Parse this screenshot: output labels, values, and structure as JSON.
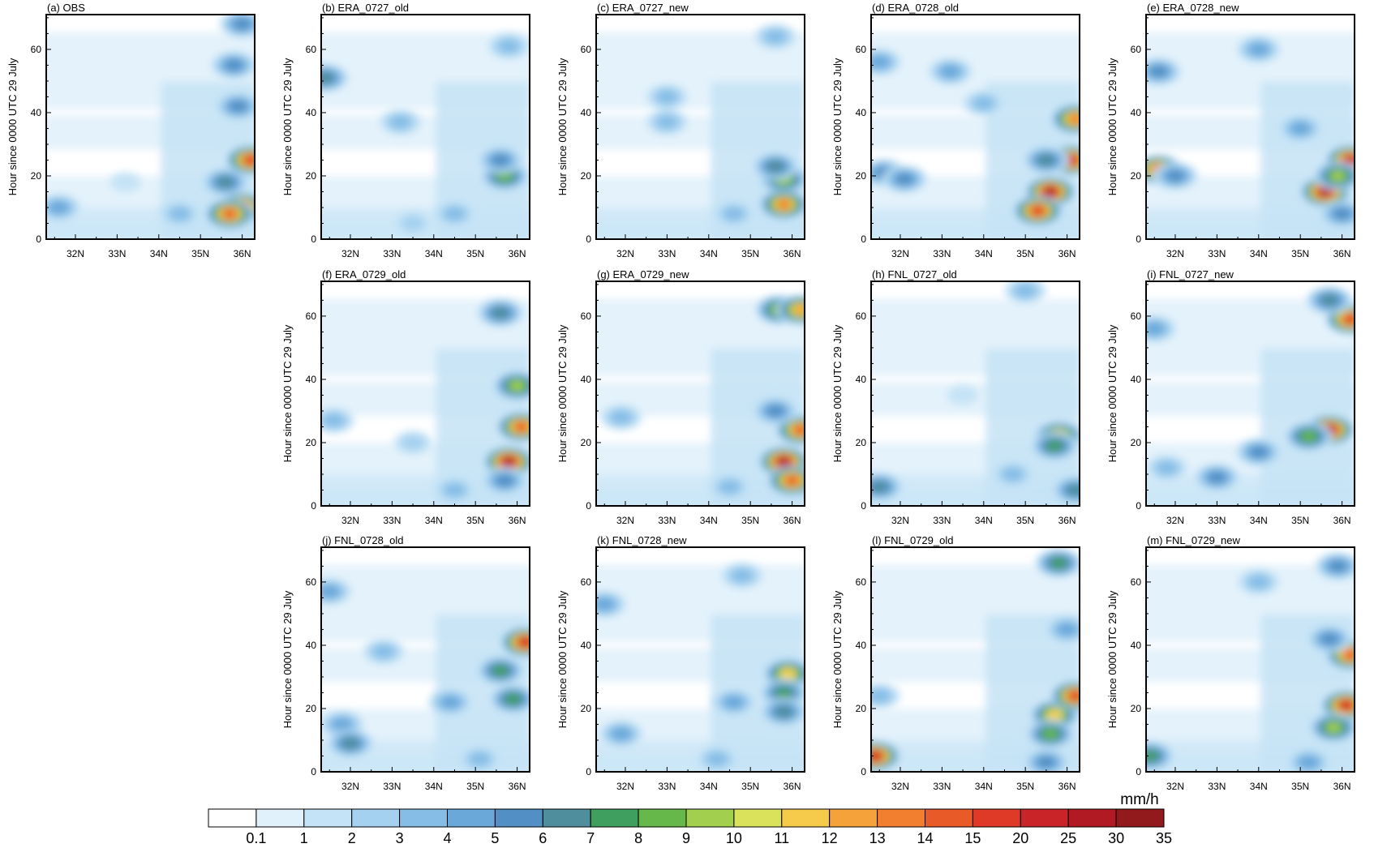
{
  "chart_data": {
    "type": "heatmap",
    "description_fields": false,
    "ylabel": "Hour since 0000 UTC 29 July",
    "x_ticks": [
      "32N",
      "33N",
      "34N",
      "35N",
      "36N"
    ],
    "x_tick_values": [
      32,
      33,
      34,
      35,
      36
    ],
    "xlim": [
      31.3,
      36.3
    ],
    "y_ticks": [
      "0",
      "20",
      "40",
      "60"
    ],
    "y_tick_values": [
      0,
      20,
      40,
      60
    ],
    "ylim": [
      0,
      71
    ],
    "colorbar": {
      "unit": "mm/h",
      "levels": [
        "0.1",
        "1",
        "2",
        "3",
        "4",
        "5",
        "6",
        "7",
        "8",
        "9",
        "10",
        "11",
        "12",
        "13",
        "14",
        "15",
        "20",
        "25",
        "30",
        "35"
      ],
      "colors": [
        "#ffffff",
        "#e1f1fb",
        "#c5e3f6",
        "#a5d1f0",
        "#86bde6",
        "#6aa8da",
        "#528fc5",
        "#4f8e9c",
        "#3f9f5f",
        "#66b84a",
        "#a3cf4e",
        "#d9e25a",
        "#f6cb4c",
        "#f6a23a",
        "#f27f2f",
        "#e95a29",
        "#de3a27",
        "#c92427",
        "#b11a22",
        "#921a1c"
      ]
    },
    "panels": [
      {
        "label": "(a) OBS",
        "cells": [
          {
            "lat": 36.0,
            "hour": 10,
            "value": 22
          },
          {
            "lat": 35.7,
            "hour": 8,
            "value": 14
          },
          {
            "lat": 36.2,
            "hour": 25,
            "value": 16
          },
          {
            "lat": 35.6,
            "hour": 18,
            "value": 6
          },
          {
            "lat": 35.9,
            "hour": 42,
            "value": 5
          },
          {
            "lat": 35.8,
            "hour": 55,
            "value": 5
          },
          {
            "lat": 36.0,
            "hour": 68,
            "value": 5
          },
          {
            "lat": 31.6,
            "hour": 10,
            "value": 4
          },
          {
            "lat": 34.5,
            "hour": 8,
            "value": 3
          },
          {
            "lat": 33.2,
            "hour": 18,
            "value": 1.5
          }
        ]
      },
      {
        "label": "(b) ERA_0727_old",
        "cells": [
          {
            "lat": 35.7,
            "hour": 20,
            "value": 8
          },
          {
            "lat": 35.6,
            "hour": 25,
            "value": 5
          },
          {
            "lat": 33.2,
            "hour": 37,
            "value": 3
          },
          {
            "lat": 35.8,
            "hour": 61,
            "value": 3
          },
          {
            "lat": 31.4,
            "hour": 51,
            "value": 6
          },
          {
            "lat": 34.5,
            "hour": 8,
            "value": 3
          },
          {
            "lat": 33.5,
            "hour": 5,
            "value": 2
          }
        ]
      },
      {
        "label": "(c) ERA_0727_new",
        "cells": [
          {
            "lat": 35.8,
            "hour": 19,
            "value": 9
          },
          {
            "lat": 35.8,
            "hour": 11,
            "value": 13
          },
          {
            "lat": 35.6,
            "hour": 23,
            "value": 6
          },
          {
            "lat": 33.0,
            "hour": 37,
            "value": 3
          },
          {
            "lat": 33.0,
            "hour": 45,
            "value": 3
          },
          {
            "lat": 35.6,
            "hour": 64,
            "value": 3
          },
          {
            "lat": 34.6,
            "hour": 8,
            "value": 3
          }
        ]
      },
      {
        "label": "(d) ERA_0728_old",
        "cells": [
          {
            "lat": 35.6,
            "hour": 15,
            "value": 25
          },
          {
            "lat": 35.3,
            "hour": 9,
            "value": 18
          },
          {
            "lat": 36.1,
            "hour": 25,
            "value": 20
          },
          {
            "lat": 36.2,
            "hour": 38,
            "value": 13
          },
          {
            "lat": 35.5,
            "hour": 25,
            "value": 6
          },
          {
            "lat": 31.6,
            "hour": 21,
            "value": 5
          },
          {
            "lat": 32.1,
            "hour": 19,
            "value": 5
          },
          {
            "lat": 31.5,
            "hour": 56,
            "value": 4
          },
          {
            "lat": 33.2,
            "hour": 53,
            "value": 4
          },
          {
            "lat": 34.0,
            "hour": 43,
            "value": 3
          }
        ]
      },
      {
        "label": "(e) ERA_0728_new",
        "cells": [
          {
            "lat": 35.6,
            "hour": 15,
            "value": 25
          },
          {
            "lat": 36.2,
            "hour": 25,
            "value": 20
          },
          {
            "lat": 35.9,
            "hour": 20,
            "value": 9
          },
          {
            "lat": 31.6,
            "hour": 22,
            "value": 14
          },
          {
            "lat": 32.0,
            "hour": 20,
            "value": 5
          },
          {
            "lat": 31.6,
            "hour": 53,
            "value": 5
          },
          {
            "lat": 34.0,
            "hour": 60,
            "value": 4
          },
          {
            "lat": 35.0,
            "hour": 35,
            "value": 4
          },
          {
            "lat": 36.0,
            "hour": 8,
            "value": 5
          }
        ]
      },
      {
        "label": "(f) ERA_0729_old",
        "cells": [
          {
            "lat": 35.8,
            "hour": 14,
            "value": 25
          },
          {
            "lat": 36.1,
            "hour": 25,
            "value": 14
          },
          {
            "lat": 36.0,
            "hour": 38,
            "value": 9
          },
          {
            "lat": 35.6,
            "hour": 61,
            "value": 6
          },
          {
            "lat": 35.7,
            "hour": 8,
            "value": 5
          },
          {
            "lat": 31.6,
            "hour": 27,
            "value": 3
          },
          {
            "lat": 33.5,
            "hour": 20,
            "value": 2
          },
          {
            "lat": 34.5,
            "hour": 5,
            "value": 3
          }
        ]
      },
      {
        "label": "(g) ERA_0729_new",
        "cells": [
          {
            "lat": 35.8,
            "hour": 14,
            "value": 25
          },
          {
            "lat": 36.2,
            "hour": 24,
            "value": 14
          },
          {
            "lat": 36.0,
            "hour": 8,
            "value": 14
          },
          {
            "lat": 35.7,
            "hour": 62,
            "value": 9
          },
          {
            "lat": 36.2,
            "hour": 62,
            "value": 12
          },
          {
            "lat": 35.6,
            "hour": 30,
            "value": 5
          },
          {
            "lat": 31.9,
            "hour": 28,
            "value": 3
          },
          {
            "lat": 34.5,
            "hour": 6,
            "value": 3
          }
        ]
      },
      {
        "label": "(h) FNL_0727_old",
        "cells": [
          {
            "lat": 35.8,
            "hour": 22,
            "value": 12
          },
          {
            "lat": 35.7,
            "hour": 19,
            "value": 7
          },
          {
            "lat": 31.5,
            "hour": 6,
            "value": 6
          },
          {
            "lat": 36.2,
            "hour": 5,
            "value": 6
          },
          {
            "lat": 34.7,
            "hour": 10,
            "value": 3
          },
          {
            "lat": 35.0,
            "hour": 68,
            "value": 3
          },
          {
            "lat": 33.5,
            "hour": 35,
            "value": 1.5
          }
        ]
      },
      {
        "label": "(i) FNL_0727_new",
        "cells": [
          {
            "lat": 35.7,
            "hour": 24,
            "value": 25
          },
          {
            "lat": 35.2,
            "hour": 22,
            "value": 8
          },
          {
            "lat": 36.2,
            "hour": 59,
            "value": 15
          },
          {
            "lat": 35.7,
            "hour": 65,
            "value": 6
          },
          {
            "lat": 34.0,
            "hour": 17,
            "value": 5
          },
          {
            "lat": 33.0,
            "hour": 9,
            "value": 5
          },
          {
            "lat": 31.5,
            "hour": 56,
            "value": 4
          },
          {
            "lat": 31.8,
            "hour": 12,
            "value": 3
          }
        ]
      },
      {
        "label": "(j) FNL_0728_old",
        "cells": [
          {
            "lat": 36.2,
            "hour": 41,
            "value": 20
          },
          {
            "lat": 35.6,
            "hour": 32,
            "value": 7
          },
          {
            "lat": 35.9,
            "hour": 23,
            "value": 7
          },
          {
            "lat": 34.4,
            "hour": 22,
            "value": 4
          },
          {
            "lat": 31.8,
            "hour": 15,
            "value": 4
          },
          {
            "lat": 32.0,
            "hour": 9,
            "value": 6
          },
          {
            "lat": 31.5,
            "hour": 57,
            "value": 4
          },
          {
            "lat": 32.8,
            "hour": 38,
            "value": 3
          },
          {
            "lat": 35.1,
            "hour": 4,
            "value": 3
          }
        ]
      },
      {
        "label": "(k) FNL_0728_new",
        "cells": [
          {
            "lat": 35.9,
            "hour": 31,
            "value": 11
          },
          {
            "lat": 35.8,
            "hour": 25,
            "value": 7
          },
          {
            "lat": 35.8,
            "hour": 19,
            "value": 6
          },
          {
            "lat": 34.6,
            "hour": 22,
            "value": 4
          },
          {
            "lat": 31.9,
            "hour": 12,
            "value": 4
          },
          {
            "lat": 31.5,
            "hour": 53,
            "value": 4
          },
          {
            "lat": 34.8,
            "hour": 62,
            "value": 3
          },
          {
            "lat": 34.2,
            "hour": 4,
            "value": 3
          }
        ]
      },
      {
        "label": "(l) FNL_0729_old",
        "cells": [
          {
            "lat": 35.7,
            "hour": 18,
            "value": 11
          },
          {
            "lat": 36.2,
            "hour": 24,
            "value": 16
          },
          {
            "lat": 35.6,
            "hour": 12,
            "value": 8
          },
          {
            "lat": 31.4,
            "hour": 5,
            "value": 20
          },
          {
            "lat": 35.8,
            "hour": 66,
            "value": 7
          },
          {
            "lat": 36.0,
            "hour": 45,
            "value": 4
          },
          {
            "lat": 35.5,
            "hour": 3,
            "value": 5
          },
          {
            "lat": 31.5,
            "hour": 24,
            "value": 3
          }
        ]
      },
      {
        "label": "(m) FNL_0729_new",
        "cells": [
          {
            "lat": 36.1,
            "hour": 21,
            "value": 22
          },
          {
            "lat": 35.8,
            "hour": 14,
            "value": 9
          },
          {
            "lat": 36.2,
            "hour": 37,
            "value": 14
          },
          {
            "lat": 35.9,
            "hour": 65,
            "value": 5
          },
          {
            "lat": 31.4,
            "hour": 5,
            "value": 7
          },
          {
            "lat": 35.7,
            "hour": 42,
            "value": 5
          },
          {
            "lat": 34.0,
            "hour": 60,
            "value": 3
          },
          {
            "lat": 35.2,
            "hour": 3,
            "value": 4
          }
        ]
      }
    ]
  }
}
